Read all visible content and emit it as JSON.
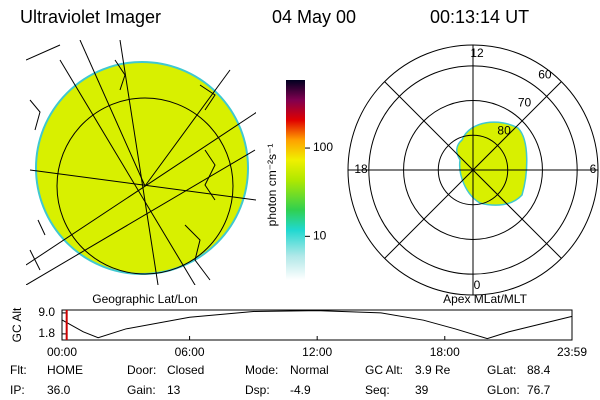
{
  "header": {
    "instrument": "Ultraviolet Imager",
    "date": "04 May 00",
    "time": "00:13:14 UT"
  },
  "geo_map": {
    "label": "Geographic Lat/Lon"
  },
  "colorbar": {
    "label": "photon cm⁻²s⁻¹",
    "log": true,
    "lim": [
      3.2,
      590
    ],
    "ticks": [
      10,
      100
    ]
  },
  "polar": {
    "label": "Apex MLat/MLT",
    "lat_lim": [
      54,
      90
    ],
    "lat_rings": [
      80,
      70,
      60
    ],
    "mlt_ticks": [
      12,
      18,
      6,
      0
    ]
  },
  "chart_data": {
    "type": "line",
    "ylabel": "GC Alt",
    "color": "#000000",
    "x": [
      0,
      1,
      1.7,
      3,
      6,
      9,
      12,
      15,
      17,
      18.5,
      20,
      21,
      23.983
    ],
    "values": [
      6.6,
      2.5,
      0.5,
      3.5,
      7.5,
      9.5,
      9.8,
      9.0,
      6.5,
      3.5,
      0.2,
      2.5,
      7.8
    ],
    "xlim": [
      0,
      23.983
    ],
    "ylim": [
      -0.3,
      10
    ],
    "xticks": [
      {
        "value": 0,
        "label": "00:00"
      },
      {
        "value": 6,
        "label": "06:00"
      },
      {
        "value": 12,
        "label": "12:00"
      },
      {
        "value": 18,
        "label": "18:00"
      },
      {
        "value": 23.983,
        "label": "23:59"
      }
    ],
    "yticks": [
      {
        "value": 9,
        "label": "9.0"
      },
      {
        "value": 1.8,
        "label": "1.8"
      }
    ],
    "marker_x": 0.22,
    "marker_color": "#cc0000"
  },
  "status": [
    [
      [
        "Flt:",
        "HOME"
      ],
      [
        "Door:",
        "Closed"
      ],
      [
        "Mode:",
        "Normal"
      ],
      [
        "GC Alt:",
        "3.9 Re"
      ],
      [
        "GLat:",
        "88.4"
      ]
    ],
    [
      [
        "IP:",
        "36.0"
      ],
      [
        "Gain:",
        "13"
      ],
      [
        "Dsp:",
        "-4.9"
      ],
      [
        "Seq:",
        "39"
      ],
      [
        "GLon:",
        "76.7"
      ]
    ]
  ]
}
